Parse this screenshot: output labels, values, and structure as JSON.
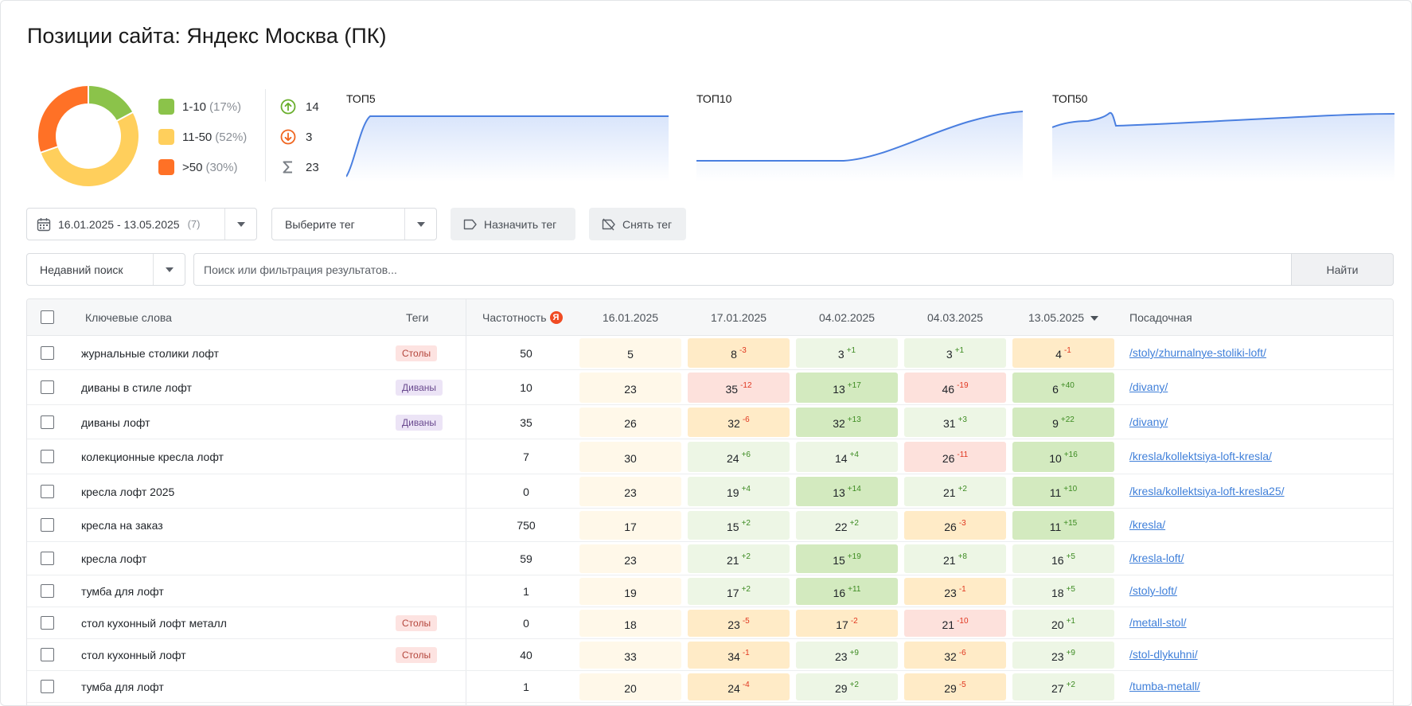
{
  "page_title": "Позиции сайта: Яндекс Москва (ПК)",
  "colors": {
    "green": "#8bc34a",
    "yellow": "#ffcf5c",
    "orange": "#ff7126",
    "accent": "#4a7fe0",
    "link": "#3f7fd9"
  },
  "distribution": [
    {
      "range": "1-10",
      "pct": "(17%)",
      "value": 17,
      "color": "#8bc34a"
    },
    {
      "range": "11-50",
      "pct": "(52%)",
      "value": 52,
      "color": "#ffcf5c"
    },
    {
      "range": ">50",
      "pct": "(30%)",
      "value": 30,
      "color": "#ff7126"
    }
  ],
  "counts": {
    "up": "14",
    "down": "3",
    "total": "23"
  },
  "sparklines": [
    {
      "label": "ТОП5"
    },
    {
      "label": "ТОП10"
    },
    {
      "label": "ТОП50"
    }
  ],
  "toolbar": {
    "date_range": "16.01.2025 - 13.05.2025",
    "date_count": "(7)",
    "tag_select": "Выберите тег",
    "assign_tag": "Назначить тег",
    "remove_tag": "Снять тег",
    "recent_search": "Недавний поиск",
    "search_placeholder": "Поиск или фильтрация результатов...",
    "find": "Найти"
  },
  "table": {
    "headers": {
      "keywords": "Ключевые слова",
      "tags": "Теги",
      "frequency": "Частотность",
      "dates": [
        "16.01.2025",
        "17.01.2025",
        "04.02.2025",
        "04.03.2025",
        "13.05.2025"
      ],
      "landing": "Посадочная"
    },
    "rows": [
      {
        "kw": "журнальные столики лофт",
        "tag": "Столы",
        "freq": "50",
        "pos": [
          [
            "5",
            ""
          ],
          [
            "8",
            "-3"
          ],
          [
            "3",
            "+1"
          ],
          [
            "3",
            "+1"
          ],
          [
            "4",
            "-1"
          ]
        ],
        "url": "/stoly/zhurnalnye-stoliki-loft/"
      },
      {
        "kw": "диваны в стиле лофт",
        "tag": "Диваны",
        "freq": "10",
        "pos": [
          [
            "23",
            ""
          ],
          [
            "35",
            "-12"
          ],
          [
            "13",
            "+17"
          ],
          [
            "46",
            "-19"
          ],
          [
            "6",
            "+40"
          ]
        ],
        "url": "/divany/"
      },
      {
        "kw": "диваны лофт",
        "tag": "Диваны",
        "freq": "35",
        "pos": [
          [
            "26",
            ""
          ],
          [
            "32",
            "-6"
          ],
          [
            "32",
            "+13"
          ],
          [
            "31",
            "+3"
          ],
          [
            "9",
            "+22"
          ]
        ],
        "url": "/divany/"
      },
      {
        "kw": "колекционные кресла лофт",
        "tag": "",
        "freq": "7",
        "pos": [
          [
            "30",
            ""
          ],
          [
            "24",
            "+6"
          ],
          [
            "14",
            "+4"
          ],
          [
            "26",
            "-11"
          ],
          [
            "10",
            "+16"
          ]
        ],
        "url": "/kresla/kollektsiya-loft-kresla/"
      },
      {
        "kw": "кресла лофт 2025",
        "tag": "",
        "freq": "0",
        "pos": [
          [
            "23",
            ""
          ],
          [
            "19",
            "+4"
          ],
          [
            "13",
            "+14"
          ],
          [
            "21",
            "+2"
          ],
          [
            "11",
            "+10"
          ]
        ],
        "url": "/kresla/kollektsiya-loft-kresla25/"
      },
      {
        "kw": "кресла на заказ",
        "tag": "",
        "freq": "750",
        "pos": [
          [
            "17",
            ""
          ],
          [
            "15",
            "+2"
          ],
          [
            "22",
            "+2"
          ],
          [
            "26",
            "-3"
          ],
          [
            "11",
            "+15"
          ]
        ],
        "url": "/kresla/"
      },
      {
        "kw": "кресла лофт",
        "tag": "",
        "freq": "59",
        "pos": [
          [
            "23",
            ""
          ],
          [
            "21",
            "+2"
          ],
          [
            "15",
            "+19"
          ],
          [
            "21",
            "+8"
          ],
          [
            "16",
            "+5"
          ]
        ],
        "url": "/kresla-loft/"
      },
      {
        "kw": "тумба для лофт",
        "tag": "",
        "freq": "1",
        "pos": [
          [
            "19",
            ""
          ],
          [
            "17",
            "+2"
          ],
          [
            "16",
            "+11"
          ],
          [
            "23",
            "-1"
          ],
          [
            "18",
            "+5"
          ]
        ],
        "url": "/stoly-loft/"
      },
      {
        "kw": "стол кухонный лофт металл",
        "tag": "Столы",
        "freq": "0",
        "pos": [
          [
            "18",
            ""
          ],
          [
            "23",
            "-5"
          ],
          [
            "17",
            "-2"
          ],
          [
            "21",
            "-10"
          ],
          [
            "20",
            "+1"
          ]
        ],
        "url": "/metall-stol/"
      },
      {
        "kw": "стол кухонный лофт",
        "tag": "Столы",
        "freq": "40",
        "pos": [
          [
            "33",
            ""
          ],
          [
            "34",
            "-1"
          ],
          [
            "23",
            "+9"
          ],
          [
            "32",
            "-6"
          ],
          [
            "23",
            "+9"
          ]
        ],
        "url": "/stol-dlykuhni/"
      },
      {
        "kw": "тумба для лофт",
        "tag": "",
        "freq": "1",
        "pos": [
          [
            "20",
            ""
          ],
          [
            "24",
            "-4"
          ],
          [
            "29",
            "+2"
          ],
          [
            "29",
            "-5"
          ],
          [
            "27",
            "+2"
          ]
        ],
        "url": "/tumba-metall/"
      }
    ]
  }
}
